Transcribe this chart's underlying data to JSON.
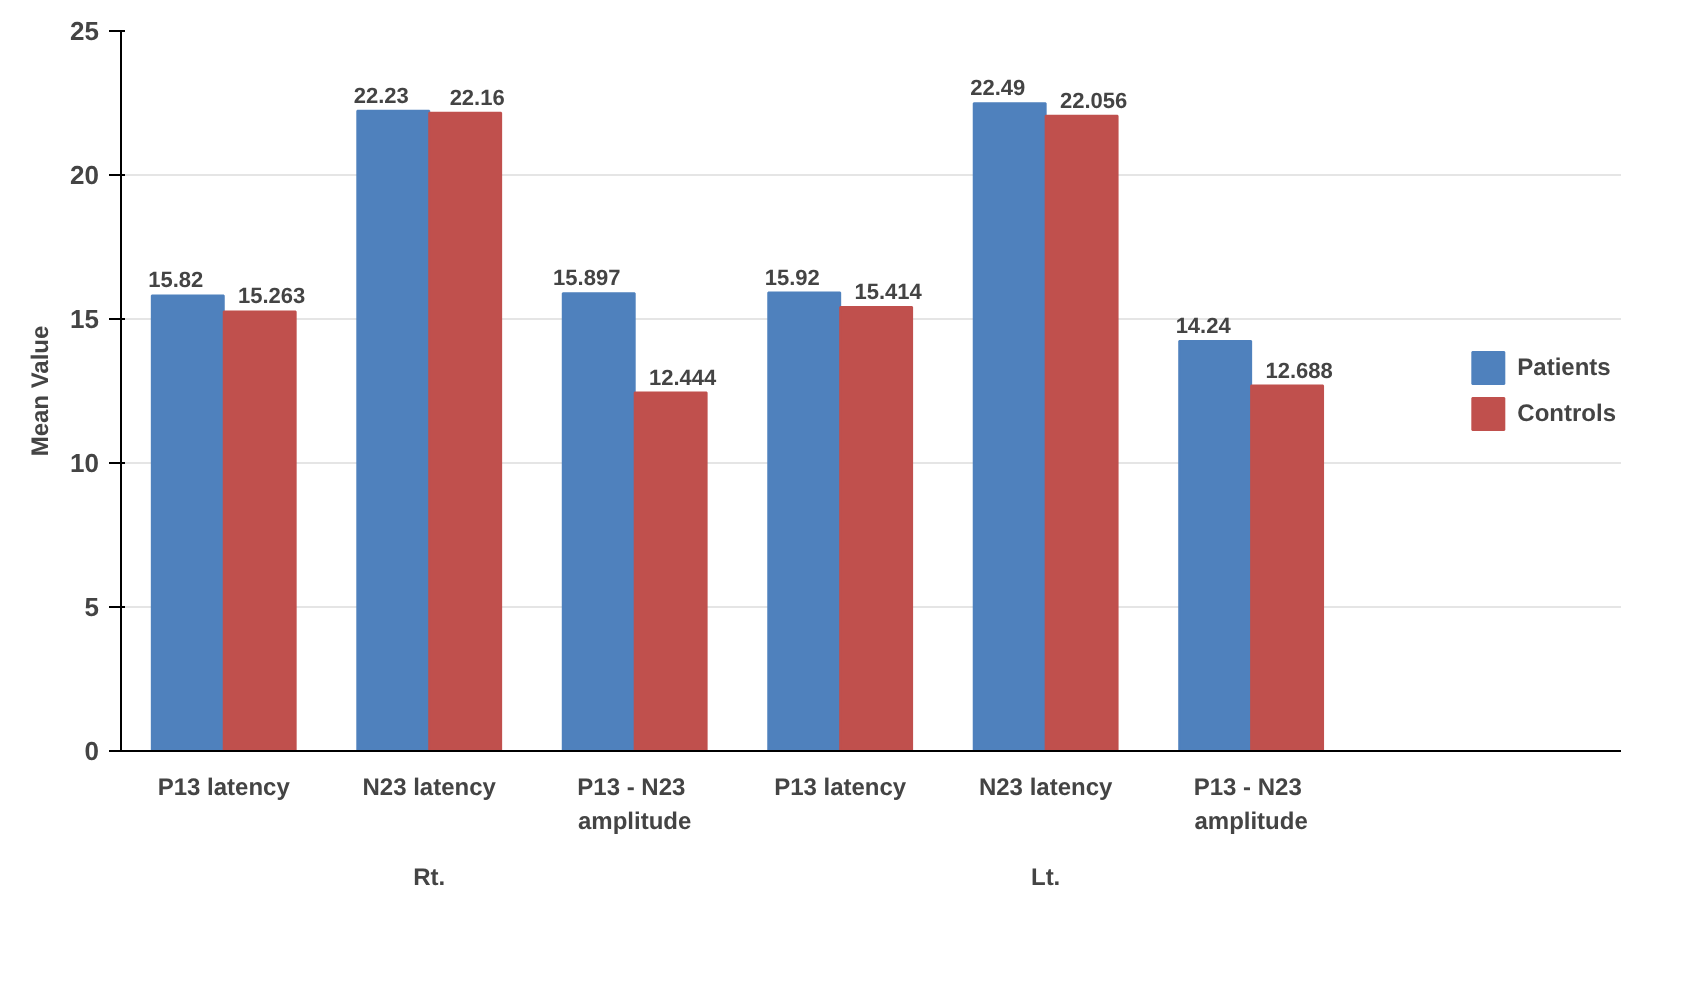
{
  "chart_data": {
    "type": "bar",
    "ylabel": "Mean Value",
    "categories": [
      "P13 latency",
      "N23 latency",
      "P13 -  N23 amplitude",
      "P13 latency",
      "N23 latency",
      "P13 -  N23 amplitude"
    ],
    "series": [
      {
        "name": "Patients",
        "color": "#4f81bd",
        "values": [
          15.82,
          22.23,
          15.897,
          15.92,
          22.49,
          14.24
        ]
      },
      {
        "name": "Controls",
        "color": "#c0504d",
        "values": [
          15.263,
          22.16,
          12.444,
          15.414,
          22.056,
          12.688
        ]
      }
    ],
    "annotations": [
      "Rt.",
      "Lt."
    ],
    "ylim": [
      0,
      25
    ],
    "yticks": [
      0,
      5,
      10,
      15,
      20,
      25
    ],
    "grid": "y",
    "legend": "right",
    "data_labels": true
  }
}
